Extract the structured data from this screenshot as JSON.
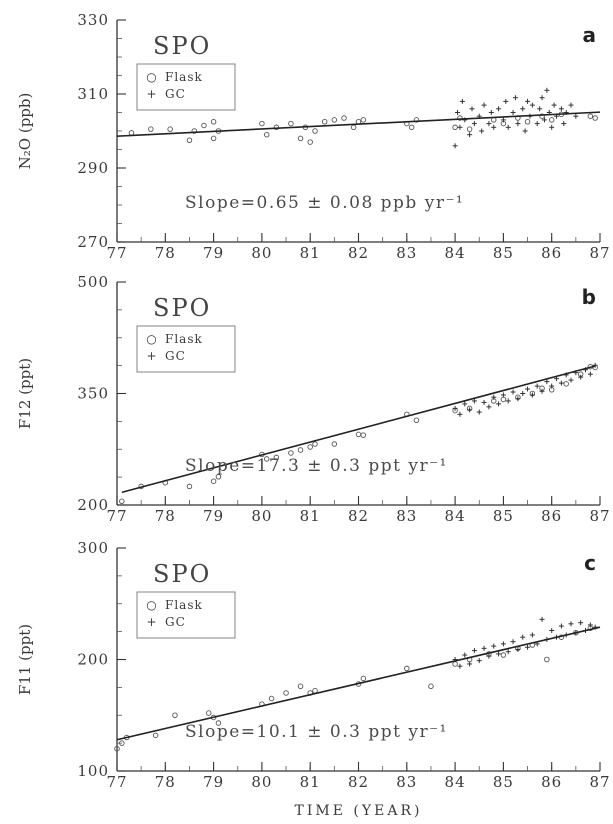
{
  "chart_data": [
    {
      "type": "scatter",
      "panel": "a",
      "station": "SPO",
      "ylabel": "N₂O (ppb)",
      "xlabel": "",
      "xlim": [
        77,
        87
      ],
      "ylim": [
        270,
        330
      ],
      "xticks": [
        "77",
        "78",
        "79",
        "80",
        "81",
        "82",
        "83",
        "84",
        "85",
        "86",
        "87"
      ],
      "yticks": [
        "270",
        "290",
        "310",
        "330"
      ],
      "legend": {
        "placement": "upper-left",
        "entries": [
          {
            "marker": "○",
            "label": "Flask"
          },
          {
            "marker": "+",
            "label": "GC"
          }
        ]
      },
      "annotation": "Slope=0.65 ± 0.08 ppb yr⁻¹",
      "trend_line": {
        "x": [
          77,
          87
        ],
        "y": [
          298.6,
          305.1
        ]
      },
      "series": [
        {
          "name": "Flask",
          "marker": "circle",
          "points": [
            [
              77.3,
              299.5
            ],
            [
              77.7,
              300.5
            ],
            [
              78.1,
              300.5
            ],
            [
              78.5,
              297.5
            ],
            [
              78.6,
              300
            ],
            [
              78.8,
              301.5
            ],
            [
              79.0,
              302.5
            ],
            [
              79.0,
              298
            ],
            [
              79.1,
              300
            ],
            [
              80.0,
              302
            ],
            [
              80.1,
              299
            ],
            [
              80.3,
              301
            ],
            [
              80.6,
              302
            ],
            [
              80.8,
              298
            ],
            [
              80.9,
              301
            ],
            [
              81.0,
              297
            ],
            [
              81.1,
              300
            ],
            [
              81.3,
              302.5
            ],
            [
              81.5,
              303
            ],
            [
              81.7,
              303.5
            ],
            [
              81.9,
              301
            ],
            [
              82.0,
              302.5
            ],
            [
              82.1,
              303
            ],
            [
              83.0,
              302
            ],
            [
              83.1,
              301
            ],
            [
              83.2,
              303
            ],
            [
              84.0,
              301
            ],
            [
              84.1,
              303.5
            ],
            [
              84.3,
              300.5
            ],
            [
              84.8,
              303
            ],
            [
              85.0,
              302
            ],
            [
              85.3,
              303.5
            ],
            [
              85.5,
              302.5
            ],
            [
              85.8,
              304
            ],
            [
              86.0,
              303
            ],
            [
              86.2,
              304.5
            ],
            [
              86.8,
              304
            ],
            [
              86.9,
              303.5
            ]
          ]
        },
        {
          "name": "GC",
          "marker": "plus",
          "points": [
            [
              84.0,
              296
            ],
            [
              84.05,
              305
            ],
            [
              84.1,
              301
            ],
            [
              84.15,
              308
            ],
            [
              84.2,
              303
            ],
            [
              84.3,
              299
            ],
            [
              84.35,
              306
            ],
            [
              84.4,
              302
            ],
            [
              84.5,
              304
            ],
            [
              84.55,
              300
            ],
            [
              84.6,
              307
            ],
            [
              84.7,
              302
            ],
            [
              84.75,
              305
            ],
            [
              84.8,
              301
            ],
            [
              84.9,
              306
            ],
            [
              85.0,
              303
            ],
            [
              85.05,
              308
            ],
            [
              85.1,
              301
            ],
            [
              85.2,
              305
            ],
            [
              85.25,
              309
            ],
            [
              85.3,
              302
            ],
            [
              85.4,
              306
            ],
            [
              85.45,
              300
            ],
            [
              85.5,
              308
            ],
            [
              85.55,
              304
            ],
            [
              85.6,
              307
            ],
            [
              85.7,
              302
            ],
            [
              85.75,
              306
            ],
            [
              85.8,
              309
            ],
            [
              85.85,
              303
            ],
            [
              85.9,
              311
            ],
            [
              85.95,
              305
            ],
            [
              86.0,
              301
            ],
            [
              86.05,
              307
            ],
            [
              86.1,
              304
            ],
            [
              86.2,
              306
            ],
            [
              86.25,
              302
            ],
            [
              86.3,
              305
            ],
            [
              86.4,
              307
            ],
            [
              86.5,
              304
            ]
          ]
        }
      ]
    },
    {
      "type": "scatter",
      "panel": "b",
      "station": "SPO",
      "ylabel": "F12 (ppt)",
      "xlabel": "",
      "xlim": [
        77,
        87
      ],
      "ylim": [
        200,
        500
      ],
      "xticks": [
        "77",
        "78",
        "79",
        "80",
        "81",
        "82",
        "83",
        "84",
        "85",
        "86",
        "87"
      ],
      "yticks": [
        "200",
        "350",
        "500"
      ],
      "legend": {
        "placement": "upper-left",
        "entries": [
          {
            "marker": "○",
            "label": "Flask"
          },
          {
            "marker": "+",
            "label": "GC"
          }
        ]
      },
      "annotation": "Slope=17.3 ± 0.3 ppt yr⁻¹",
      "trend_line": {
        "x": [
          77.1,
          86.9
        ],
        "y": [
          217,
          387
        ]
      },
      "series": [
        {
          "name": "Flask",
          "marker": "circle",
          "points": [
            [
              77.1,
              205
            ],
            [
              77.5,
              225
            ],
            [
              78.0,
              230
            ],
            [
              78.5,
              225
            ],
            [
              79.0,
              232
            ],
            [
              79.1,
              238
            ],
            [
              80.0,
              268
            ],
            [
              80.1,
              262
            ],
            [
              80.3,
              264
            ],
            [
              80.6,
              270
            ],
            [
              80.8,
              274
            ],
            [
              81.0,
              278
            ],
            [
              81.1,
              282
            ],
            [
              81.5,
              282
            ],
            [
              82.0,
              295
            ],
            [
              82.1,
              294
            ],
            [
              83.0,
              322
            ],
            [
              83.2,
              314
            ],
            [
              84.0,
              327
            ],
            [
              84.3,
              330
            ],
            [
              84.8,
              340
            ],
            [
              85.0,
              342
            ],
            [
              85.3,
              345
            ],
            [
              85.6,
              350
            ],
            [
              85.8,
              357
            ],
            [
              86.0,
              355
            ],
            [
              86.3,
              363
            ],
            [
              86.6,
              376
            ],
            [
              86.8,
              386
            ],
            [
              86.9,
              385
            ]
          ]
        },
        {
          "name": "GC",
          "marker": "plus",
          "points": [
            [
              84.0,
              330
            ],
            [
              84.1,
              322
            ],
            [
              84.2,
              336
            ],
            [
              84.3,
              328
            ],
            [
              84.4,
              340
            ],
            [
              84.5,
              325
            ],
            [
              84.6,
              338
            ],
            [
              84.7,
              332
            ],
            [
              84.8,
              345
            ],
            [
              84.9,
              336
            ],
            [
              85.0,
              348
            ],
            [
              85.1,
              340
            ],
            [
              85.2,
              352
            ],
            [
              85.3,
              343
            ],
            [
              85.4,
              350
            ],
            [
              85.5,
              356
            ],
            [
              85.6,
              348
            ],
            [
              85.7,
              360
            ],
            [
              85.8,
              353
            ],
            [
              85.9,
              366
            ],
            [
              86.0,
              360
            ],
            [
              86.1,
              370
            ],
            [
              86.2,
              364
            ],
            [
              86.3,
              375
            ],
            [
              86.4,
              368
            ],
            [
              86.5,
              378
            ],
            [
              86.6,
              372
            ],
            [
              86.7,
              382
            ],
            [
              86.8,
              376
            ],
            [
              86.9,
              388
            ]
          ]
        }
      ]
    },
    {
      "type": "scatter",
      "panel": "c",
      "station": "SPO",
      "ylabel": "F11 (ppt)",
      "xlabel": "TIME (YEAR)",
      "xlim": [
        77,
        87
      ],
      "ylim": [
        100,
        300
      ],
      "xticks": [
        "77",
        "78",
        "79",
        "80",
        "81",
        "82",
        "83",
        "84",
        "85",
        "86",
        "87"
      ],
      "yticks": [
        "100",
        "200",
        "300"
      ],
      "legend": {
        "placement": "upper-left",
        "entries": [
          {
            "marker": "○",
            "label": "Flask"
          },
          {
            "marker": "+",
            "label": "GC"
          }
        ]
      },
      "annotation": "Slope=10.1 ± 0.3 ppt yr⁻¹",
      "trend_line": {
        "x": [
          77,
          87
        ],
        "y": [
          128,
          229
        ]
      },
      "series": [
        {
          "name": "Flask",
          "marker": "circle",
          "points": [
            [
              77.0,
              120
            ],
            [
              77.1,
              125
            ],
            [
              77.2,
              130
            ],
            [
              77.8,
              132
            ],
            [
              78.2,
              150
            ],
            [
              78.9,
              152
            ],
            [
              79.0,
              148
            ],
            [
              79.1,
              143
            ],
            [
              80.0,
              160
            ],
            [
              80.2,
              165
            ],
            [
              80.5,
              170
            ],
            [
              80.8,
              176
            ],
            [
              81.0,
              170
            ],
            [
              81.1,
              172
            ],
            [
              82.0,
              178
            ],
            [
              82.1,
              183
            ],
            [
              83.0,
              192
            ],
            [
              83.5,
              176
            ],
            [
              84.0,
              196
            ],
            [
              84.3,
              200
            ],
            [
              84.7,
              205
            ],
            [
              85.0,
              204
            ],
            [
              85.3,
              210
            ],
            [
              85.6,
              213
            ],
            [
              85.9,
              200
            ],
            [
              86.2,
              220
            ],
            [
              86.5,
              224
            ],
            [
              86.8,
              228
            ]
          ]
        },
        {
          "name": "GC",
          "marker": "plus",
          "points": [
            [
              84.0,
              200
            ],
            [
              84.1,
              194
            ],
            [
              84.2,
              204
            ],
            [
              84.3,
              196
            ],
            [
              84.4,
              208
            ],
            [
              84.5,
              199
            ],
            [
              84.6,
              210
            ],
            [
              84.7,
              203
            ],
            [
              84.8,
              212
            ],
            [
              84.9,
              205
            ],
            [
              85.0,
              214
            ],
            [
              85.1,
              207
            ],
            [
              85.2,
              216
            ],
            [
              85.3,
              209
            ],
            [
              85.4,
              220
            ],
            [
              85.5,
              211
            ],
            [
              85.6,
              222
            ],
            [
              85.7,
              214
            ],
            [
              85.8,
              236
            ],
            [
              85.9,
              218
            ],
            [
              86.0,
              226
            ],
            [
              86.1,
              220
            ],
            [
              86.2,
              230
            ],
            [
              86.3,
              222
            ],
            [
              86.4,
              232
            ],
            [
              86.5,
              224
            ],
            [
              86.6,
              233
            ],
            [
              86.7,
              226
            ],
            [
              86.8,
              231
            ],
            [
              86.9,
              229
            ]
          ]
        }
      ]
    }
  ]
}
